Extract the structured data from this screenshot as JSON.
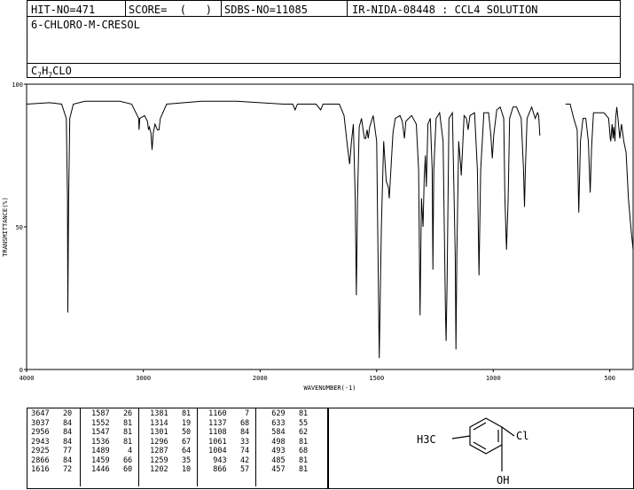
{
  "header": {
    "hit_no": "HIT-NO=471",
    "score": "SCORE=  (   )",
    "sdbs_no": "SDBS-NO=11085",
    "ir_nida": "IR-NIDA-08448 : CCL4 SOLUTION"
  },
  "compound": {
    "name": "6-CHLORO-M-CRESOL",
    "formula_parts": [
      "C",
      "7",
      "H",
      "7",
      "CLO"
    ]
  },
  "chart_data": {
    "type": "line",
    "xlabel": "WAVENUMBER(-1)",
    "ylabel": "TRANSMITTANCE(%)",
    "xlim": [
      4000,
      400
    ],
    "ylim": [
      0,
      100
    ],
    "x_ticks": [
      4000,
      3000,
      2000,
      1500,
      1000,
      500
    ],
    "y_ticks": [
      0,
      50,
      100
    ],
    "gap": [
      800,
      690
    ],
    "baseline": 93,
    "series": [
      {
        "values": [
          [
            4000,
            93
          ],
          [
            3800,
            93.5
          ],
          [
            3700,
            93
          ],
          [
            3660,
            88
          ],
          [
            3650,
            60
          ],
          [
            3647,
            20
          ],
          [
            3640,
            60
          ],
          [
            3630,
            88
          ],
          [
            3600,
            93
          ],
          [
            3500,
            94
          ],
          [
            3200,
            94
          ],
          [
            3100,
            93
          ],
          [
            3040,
            88
          ],
          [
            3037,
            84
          ],
          [
            3030,
            88
          ],
          [
            2990,
            89
          ],
          [
            2965,
            87
          ],
          [
            2956,
            84
          ],
          [
            2948,
            85
          ],
          [
            2943,
            84
          ],
          [
            2935,
            83
          ],
          [
            2925,
            77
          ],
          [
            2915,
            83
          ],
          [
            2900,
            86
          ],
          [
            2880,
            84
          ],
          [
            2866,
            84
          ],
          [
            2855,
            88
          ],
          [
            2800,
            93
          ],
          [
            2500,
            94
          ],
          [
            2200,
            94
          ],
          [
            1900,
            93
          ],
          [
            1860,
            93
          ],
          [
            1850,
            91
          ],
          [
            1840,
            93
          ],
          [
            1760,
            93
          ],
          [
            1740,
            91
          ],
          [
            1730,
            93
          ],
          [
            1660,
            93
          ],
          [
            1640,
            89
          ],
          [
            1625,
            78
          ],
          [
            1616,
            72
          ],
          [
            1608,
            80
          ],
          [
            1600,
            86
          ],
          [
            1592,
            60
          ],
          [
            1587,
            26
          ],
          [
            1582,
            60
          ],
          [
            1575,
            85
          ],
          [
            1565,
            88
          ],
          [
            1558,
            84
          ],
          [
            1552,
            81
          ],
          [
            1547,
            81
          ],
          [
            1541,
            84
          ],
          [
            1536,
            81
          ],
          [
            1530,
            85
          ],
          [
            1515,
            89
          ],
          [
            1500,
            80
          ],
          [
            1489,
            4
          ],
          [
            1480,
            50
          ],
          [
            1470,
            80
          ],
          [
            1459,
            66
          ],
          [
            1450,
            64
          ],
          [
            1446,
            60
          ],
          [
            1430,
            83
          ],
          [
            1420,
            88
          ],
          [
            1400,
            89
          ],
          [
            1390,
            87
          ],
          [
            1381,
            81
          ],
          [
            1375,
            87
          ],
          [
            1350,
            89
          ],
          [
            1330,
            86
          ],
          [
            1320,
            70
          ],
          [
            1314,
            19
          ],
          [
            1308,
            60
          ],
          [
            1301,
            50
          ],
          [
            1296,
            67
          ],
          [
            1291,
            75
          ],
          [
            1287,
            64
          ],
          [
            1280,
            86
          ],
          [
            1270,
            88
          ],
          [
            1262,
            70
          ],
          [
            1259,
            35
          ],
          [
            1255,
            70
          ],
          [
            1245,
            88
          ],
          [
            1230,
            90
          ],
          [
            1215,
            80
          ],
          [
            1205,
            20
          ],
          [
            1202,
            10
          ],
          [
            1198,
            30
          ],
          [
            1190,
            88
          ],
          [
            1175,
            90
          ],
          [
            1163,
            40
          ],
          [
            1160,
            7
          ],
          [
            1156,
            40
          ],
          [
            1148,
            80
          ],
          [
            1140,
            72
          ],
          [
            1137,
            68
          ],
          [
            1133,
            75
          ],
          [
            1125,
            89
          ],
          [
            1115,
            88
          ],
          [
            1108,
            84
          ],
          [
            1100,
            89
          ],
          [
            1080,
            90
          ],
          [
            1068,
            70
          ],
          [
            1061,
            33
          ],
          [
            1054,
            70
          ],
          [
            1040,
            90
          ],
          [
            1020,
            90
          ],
          [
            1010,
            82
          ],
          [
            1004,
            74
          ],
          [
            998,
            82
          ],
          [
            985,
            91
          ],
          [
            970,
            92
          ],
          [
            955,
            88
          ],
          [
            950,
            60
          ],
          [
            943,
            42
          ],
          [
            936,
            60
          ],
          [
            930,
            88
          ],
          [
            915,
            92
          ],
          [
            900,
            92
          ],
          [
            880,
            88
          ],
          [
            870,
            70
          ],
          [
            866,
            57
          ],
          [
            862,
            70
          ],
          [
            855,
            88
          ],
          [
            835,
            92
          ],
          [
            820,
            88
          ],
          [
            810,
            90
          ],
          [
            805,
            89
          ],
          [
            800,
            82
          ],
          [
            690,
            93
          ],
          [
            670,
            93
          ],
          [
            655,
            88
          ],
          [
            640,
            84
          ],
          [
            633,
            55
          ],
          [
            626,
            80
          ],
          [
            615,
            88
          ],
          [
            603,
            88
          ],
          [
            592,
            80
          ],
          [
            584,
            62
          ],
          [
            578,
            78
          ],
          [
            570,
            90
          ],
          [
            545,
            90
          ],
          [
            525,
            90
          ],
          [
            505,
            88
          ],
          [
            498,
            81
          ],
          [
            496,
            80
          ],
          [
            490,
            86
          ],
          [
            486,
            81
          ],
          [
            483,
            85
          ],
          [
            478,
            80
          ],
          [
            475,
            88
          ],
          [
            470,
            92
          ],
          [
            465,
            88
          ],
          [
            457,
            81
          ],
          [
            450,
            86
          ],
          [
            440,
            80
          ],
          [
            430,
            76
          ],
          [
            420,
            60
          ],
          [
            410,
            50
          ],
          [
            400,
            42
          ]
        ]
      }
    ]
  },
  "peak_table": [
    [
      [
        "3647",
        "20"
      ],
      [
        "3037",
        "84"
      ],
      [
        "2956",
        "84"
      ],
      [
        "2943",
        "84"
      ],
      [
        "2925",
        "77"
      ],
      [
        "2866",
        "84"
      ],
      [
        "1616",
        "72"
      ]
    ],
    [
      [
        "1587",
        "26"
      ],
      [
        "1552",
        "81"
      ],
      [
        "1547",
        "81"
      ],
      [
        "1536",
        "81"
      ],
      [
        "1489",
        "4"
      ],
      [
        "1459",
        "66"
      ],
      [
        "1446",
        "60"
      ]
    ],
    [
      [
        "1381",
        "81"
      ],
      [
        "1314",
        "19"
      ],
      [
        "1301",
        "50"
      ],
      [
        "1296",
        "67"
      ],
      [
        "1287",
        "64"
      ],
      [
        "1259",
        "35"
      ],
      [
        "1202",
        "10"
      ]
    ],
    [
      [
        "1160",
        "7"
      ],
      [
        "1137",
        "68"
      ],
      [
        "1108",
        "84"
      ],
      [
        "1061",
        "33"
      ],
      [
        "1004",
        "74"
      ],
      [
        "943",
        "42"
      ],
      [
        "866",
        "57"
      ]
    ],
    [
      [
        "629",
        "81"
      ],
      [
        "633",
        "55"
      ],
      [
        "584",
        "62"
      ],
      [
        "498",
        "81"
      ],
      [
        "493",
        "68"
      ],
      [
        "485",
        "81"
      ],
      [
        "457",
        "81"
      ]
    ]
  ],
  "structure": {
    "left_group": "H3C",
    "substituent_top": "Cl",
    "substituent_bottom": "OH"
  }
}
